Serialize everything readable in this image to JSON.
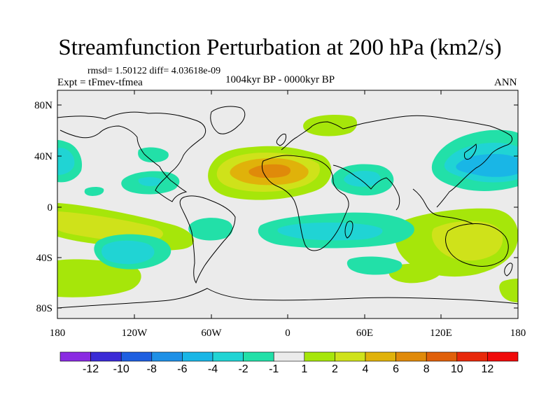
{
  "title": "Streamfunction Perturbation at 200 hPa (km2/s)",
  "stats": "rmsd= 1.50122 diff= 4.03618e-09",
  "experiment": "Expt = tFmev-tfmea",
  "period": "1004kyr BP - 0000kyr BP",
  "season": "ANN",
  "lat_ticks": [
    "80N",
    "40N",
    "0",
    "40S",
    "80S"
  ],
  "lon_ticks": [
    "180",
    "120W",
    "60W",
    "0",
    "60E",
    "120E",
    "180"
  ],
  "colorbar": {
    "labels": [
      "-12",
      "-10",
      "-8",
      "-6",
      "-4",
      "-2",
      "-1",
      "1",
      "2",
      "4",
      "6",
      "8",
      "10",
      "12"
    ],
    "colors": [
      "#8a2be2",
      "#3b2bd6",
      "#1e5fe0",
      "#1e90e6",
      "#19b6e6",
      "#20d4d4",
      "#22e0a8",
      "#ebebeb",
      "#a6e60a",
      "#cfe21a",
      "#e0b20a",
      "#e08a0a",
      "#e0600a",
      "#e8280a",
      "#f00a0a"
    ]
  },
  "map_features": {
    "background": "#ebebeb",
    "positive_fill_1": "#a6e60a",
    "positive_fill_2": "#cfe21a",
    "positive_fill_3": "#e0b20a",
    "positive_fill_4": "#e08a0a",
    "negative_fill_1": "#22e0a8",
    "negative_fill_2": "#20d4d4",
    "negative_fill_3": "#19b6e6"
  }
}
